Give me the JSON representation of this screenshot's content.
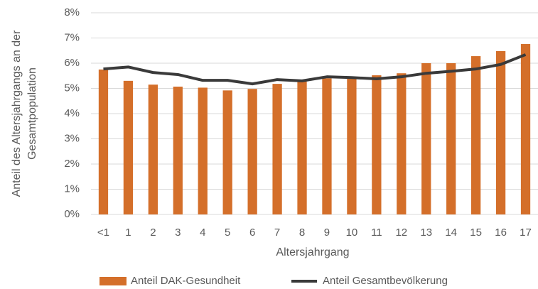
{
  "chart_data": {
    "type": "bar",
    "xlabel": "Altersjahrgang",
    "ylabel": [
      "Anteil des Altersjahrgangs an der",
      "Gesamtpopulation"
    ],
    "categories": [
      "<1",
      "1",
      "2",
      "3",
      "4",
      "5",
      "6",
      "7",
      "8",
      "9",
      "10",
      "11",
      "12",
      "13",
      "14",
      "15",
      "16",
      "17"
    ],
    "series": [
      {
        "name": "Anteil DAK-Gesundheit",
        "type": "bar",
        "color": "#d46f2a",
        "values": [
          5.75,
          5.3,
          5.15,
          5.07,
          5.03,
          4.92,
          4.98,
          5.18,
          5.27,
          5.4,
          5.4,
          5.52,
          5.6,
          6.0,
          6.0,
          6.28,
          6.48,
          6.76
        ]
      },
      {
        "name": "Anteil Gesamtbevölkerung",
        "type": "line",
        "color": "#3a3a3a",
        "values": [
          5.77,
          5.85,
          5.63,
          5.55,
          5.32,
          5.32,
          5.18,
          5.35,
          5.3,
          5.46,
          5.43,
          5.38,
          5.46,
          5.6,
          5.68,
          5.77,
          5.95,
          6.34
        ]
      }
    ],
    "ylim": [
      0,
      8
    ],
    "yticks": [
      {
        "value": 0,
        "label": "0%"
      },
      {
        "value": 1,
        "label": "1%"
      },
      {
        "value": 2,
        "label": "2%"
      },
      {
        "value": 3,
        "label": "3%"
      },
      {
        "value": 4,
        "label": "4%"
      },
      {
        "value": 5,
        "label": "5%"
      },
      {
        "value": 6,
        "label": "6%"
      },
      {
        "value": 7,
        "label": "7%"
      },
      {
        "value": 8,
        "label": "8%"
      }
    ],
    "grid": true,
    "legend": "bottom"
  }
}
